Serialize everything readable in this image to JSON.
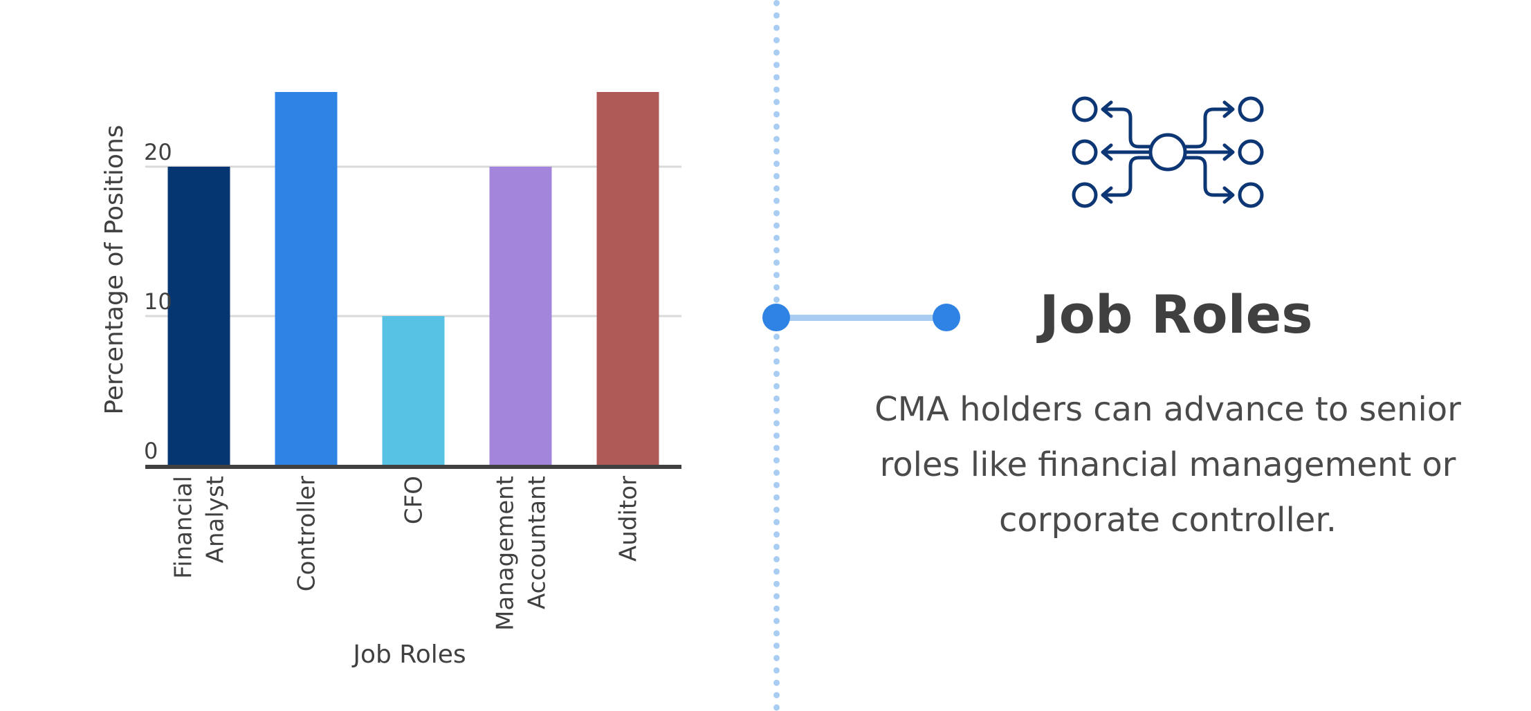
{
  "chart_data": {
    "type": "bar",
    "categories": [
      "Financial Analyst",
      "Controller",
      "CFO",
      "Management Accountant",
      "Auditor"
    ],
    "category_lines": [
      [
        "Financial",
        "Analyst"
      ],
      [
        "Controller"
      ],
      [
        "CFO"
      ],
      [
        "Management",
        "Accountant"
      ],
      [
        "Auditor"
      ]
    ],
    "values": [
      20,
      25,
      10,
      20,
      25
    ],
    "colors": [
      "#063672",
      "#2f83e4",
      "#57c2e4",
      "#a385dc",
      "#b05a58"
    ],
    "xlabel": "Job Roles",
    "ylabel": "Percentage of Positions",
    "yticks": [
      0,
      10,
      20
    ],
    "ylim": [
      0,
      25
    ],
    "grid": true,
    "legend": "none"
  },
  "panel": {
    "title": "Job Roles",
    "description": "CMA holders can advance to senior roles like financial management or corporate controller.",
    "icon": "network-distribution-icon",
    "accent_color": "#2f83e4",
    "icon_color": "#0d3675"
  }
}
